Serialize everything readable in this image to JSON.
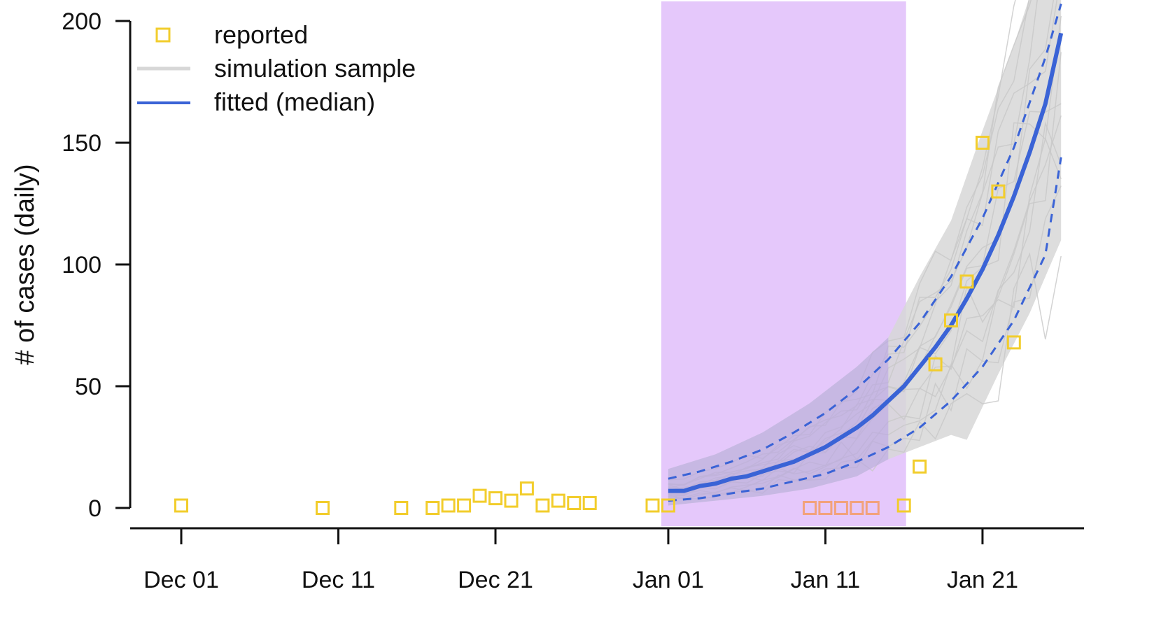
{
  "chart_data": {
    "type": "line",
    "title": "",
    "xlabel": "",
    "ylabel": "# of cases (daily)",
    "x_ticks": [
      "Dec 01",
      "Dec 11",
      "Dec 21",
      "Jan 01",
      "Jan 11",
      "Jan 21"
    ],
    "y_ticks": [
      "0",
      "50",
      "100",
      "150",
      "200"
    ],
    "ylim": [
      0,
      200
    ],
    "xlim": [
      "2019-11-28",
      "2020-01-26"
    ],
    "shaded_region": {
      "start": "2020-01-01",
      "end": "2020-01-16",
      "color": "#e5c8fb"
    },
    "legend": {
      "placement": "top-left",
      "entries": [
        {
          "key": "reported",
          "label": "reported"
        },
        {
          "key": "simulation",
          "label": "simulation sample"
        },
        {
          "key": "fitted",
          "label": "fitted (median)"
        }
      ]
    },
    "colors": {
      "reported": "#f2cd2c",
      "reported_highlight": "#f2a27c",
      "simulation": "#d7d7d7",
      "fitted": "#3a63d6",
      "band": "#3a63d6",
      "axis": "#111111"
    },
    "series": [
      {
        "name": "reported",
        "style": "square-markers",
        "points": [
          {
            "x": "2019-12-01",
            "y": 1
          },
          {
            "x": "2019-12-10",
            "y": 0
          },
          {
            "x": "2019-12-15",
            "y": 0
          },
          {
            "x": "2019-12-17",
            "y": 0
          },
          {
            "x": "2019-12-18",
            "y": 1
          },
          {
            "x": "2019-12-19",
            "y": 1
          },
          {
            "x": "2019-12-20",
            "y": 5
          },
          {
            "x": "2019-12-21",
            "y": 4
          },
          {
            "x": "2019-12-22",
            "y": 3
          },
          {
            "x": "2019-12-23",
            "y": 8
          },
          {
            "x": "2019-12-24",
            "y": 1
          },
          {
            "x": "2019-12-25",
            "y": 3
          },
          {
            "x": "2019-12-26",
            "y": 2
          },
          {
            "x": "2019-12-27",
            "y": 2
          },
          {
            "x": "2019-12-31",
            "y": 1
          },
          {
            "x": "2020-01-01",
            "y": 1
          },
          {
            "x": "2020-01-10",
            "y": 0,
            "highlight": true
          },
          {
            "x": "2020-01-11",
            "y": 0,
            "highlight": true
          },
          {
            "x": "2020-01-12",
            "y": 0,
            "highlight": true
          },
          {
            "x": "2020-01-13",
            "y": 0,
            "highlight": true
          },
          {
            "x": "2020-01-14",
            "y": 0,
            "highlight": true
          },
          {
            "x": "2020-01-16",
            "y": 1
          },
          {
            "x": "2020-01-17",
            "y": 17
          },
          {
            "x": "2020-01-18",
            "y": 59
          },
          {
            "x": "2020-01-19",
            "y": 77
          },
          {
            "x": "2020-01-20",
            "y": 93
          },
          {
            "x": "2020-01-21",
            "y": 150
          },
          {
            "x": "2020-01-22",
            "y": 130
          },
          {
            "x": "2020-01-23",
            "y": 68
          }
        ]
      },
      {
        "name": "fitted (median)",
        "style": "solid-line",
        "points": [
          {
            "x": "2020-01-01",
            "y": 7
          },
          {
            "x": "2020-01-02",
            "y": 7
          },
          {
            "x": "2020-01-03",
            "y": 9
          },
          {
            "x": "2020-01-04",
            "y": 10
          },
          {
            "x": "2020-01-05",
            "y": 12
          },
          {
            "x": "2020-01-06",
            "y": 13
          },
          {
            "x": "2020-01-07",
            "y": 15
          },
          {
            "x": "2020-01-08",
            "y": 17
          },
          {
            "x": "2020-01-09",
            "y": 19
          },
          {
            "x": "2020-01-10",
            "y": 22
          },
          {
            "x": "2020-01-11",
            "y": 25
          },
          {
            "x": "2020-01-12",
            "y": 29
          },
          {
            "x": "2020-01-13",
            "y": 33
          },
          {
            "x": "2020-01-14",
            "y": 38
          },
          {
            "x": "2020-01-15",
            "y": 44
          },
          {
            "x": "2020-01-16",
            "y": 50
          },
          {
            "x": "2020-01-17",
            "y": 58
          },
          {
            "x": "2020-01-18",
            "y": 66
          },
          {
            "x": "2020-01-19",
            "y": 75
          },
          {
            "x": "2020-01-20",
            "y": 86
          },
          {
            "x": "2020-01-21",
            "y": 98
          },
          {
            "x": "2020-01-22",
            "y": 112
          },
          {
            "x": "2020-01-23",
            "y": 128
          },
          {
            "x": "2020-01-24",
            "y": 146
          },
          {
            "x": "2020-01-25",
            "y": 166
          },
          {
            "x": "2020-01-26",
            "y": 195
          }
        ]
      },
      {
        "name": "upper",
        "style": "dashed-line",
        "points": [
          {
            "x": "2020-01-01",
            "y": 12
          },
          {
            "x": "2020-01-03",
            "y": 15
          },
          {
            "x": "2020-01-05",
            "y": 19
          },
          {
            "x": "2020-01-07",
            "y": 24
          },
          {
            "x": "2020-01-09",
            "y": 31
          },
          {
            "x": "2020-01-11",
            "y": 39
          },
          {
            "x": "2020-01-13",
            "y": 49
          },
          {
            "x": "2020-01-15",
            "y": 61
          },
          {
            "x": "2020-01-17",
            "y": 76
          },
          {
            "x": "2020-01-19",
            "y": 95
          },
          {
            "x": "2020-01-21",
            "y": 119
          },
          {
            "x": "2020-01-23",
            "y": 148
          },
          {
            "x": "2020-01-25",
            "y": 185
          },
          {
            "x": "2020-01-26",
            "y": 207
          }
        ]
      },
      {
        "name": "lower",
        "style": "dashed-line",
        "points": [
          {
            "x": "2020-01-01",
            "y": 3
          },
          {
            "x": "2020-01-03",
            "y": 4
          },
          {
            "x": "2020-01-05",
            "y": 6
          },
          {
            "x": "2020-01-07",
            "y": 8
          },
          {
            "x": "2020-01-09",
            "y": 11
          },
          {
            "x": "2020-01-11",
            "y": 14
          },
          {
            "x": "2020-01-13",
            "y": 19
          },
          {
            "x": "2020-01-15",
            "y": 25
          },
          {
            "x": "2020-01-17",
            "y": 33
          },
          {
            "x": "2020-01-19",
            "y": 44
          },
          {
            "x": "2020-01-21",
            "y": 58
          },
          {
            "x": "2020-01-23",
            "y": 77
          },
          {
            "x": "2020-01-25",
            "y": 104
          },
          {
            "x": "2020-01-26",
            "y": 144
          }
        ]
      },
      {
        "name": "simulation",
        "style": "band",
        "points_upper": [
          {
            "x": "2020-01-01",
            "y": 16
          },
          {
            "x": "2020-01-04",
            "y": 22
          },
          {
            "x": "2020-01-07",
            "y": 31
          },
          {
            "x": "2020-01-10",
            "y": 43
          },
          {
            "x": "2020-01-13",
            "y": 58
          },
          {
            "x": "2020-01-15",
            "y": 70
          },
          {
            "x": "2020-01-17",
            "y": 95
          },
          {
            "x": "2020-01-19",
            "y": 118
          },
          {
            "x": "2020-01-21",
            "y": 155
          },
          {
            "x": "2020-01-23",
            "y": 190
          },
          {
            "x": "2020-01-24",
            "y": 210
          },
          {
            "x": "2020-01-26",
            "y": 210
          }
        ],
        "points_lower": [
          {
            "x": "2020-01-01",
            "y": 1
          },
          {
            "x": "2020-01-04",
            "y": 3
          },
          {
            "x": "2020-01-07",
            "y": 5
          },
          {
            "x": "2020-01-10",
            "y": 8
          },
          {
            "x": "2020-01-13",
            "y": 13
          },
          {
            "x": "2020-01-15",
            "y": 20
          },
          {
            "x": "2020-01-17",
            "y": 25
          },
          {
            "x": "2020-01-19",
            "y": 30
          },
          {
            "x": "2020-01-20",
            "y": 28
          },
          {
            "x": "2020-01-22",
            "y": 55
          },
          {
            "x": "2020-01-24",
            "y": 80
          },
          {
            "x": "2020-01-26",
            "y": 110
          }
        ]
      }
    ]
  }
}
